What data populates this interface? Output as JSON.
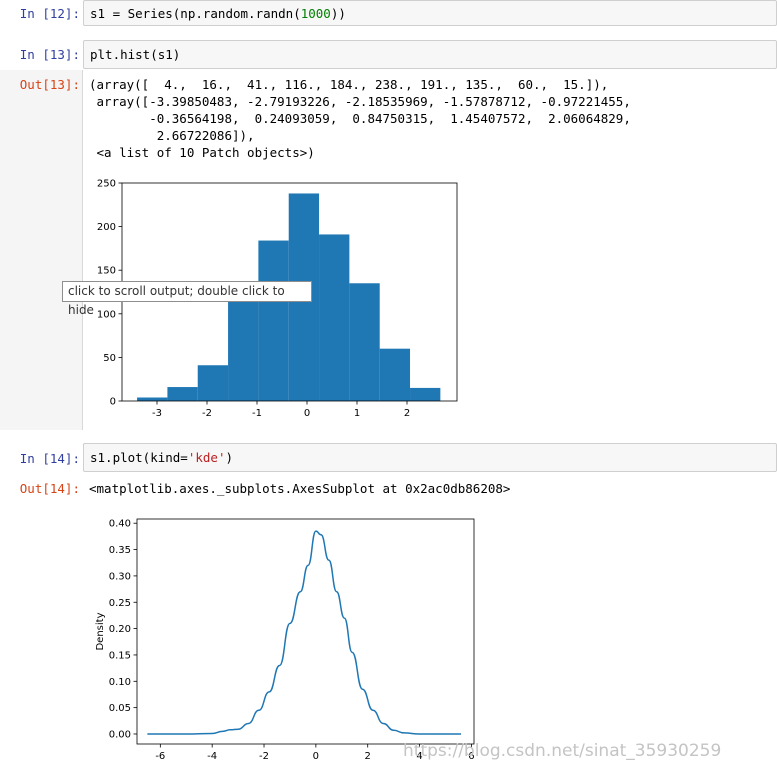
{
  "cells": {
    "c12": {
      "prompt": "In  [12]:",
      "code_a": "s1 = Series(np.random.randn(",
      "code_num": "1000",
      "code_b": "))"
    },
    "c13": {
      "prompt": "In  [13]:",
      "code": "plt.hist(s1)",
      "out_prompt": "Out[13]:",
      "output_lines": [
        "(array([  4.,  16.,  41., 116., 184., 238., 191., 135.,  60.,  15.]),",
        " array([-3.39850483, -2.79193226, -2.18535969, -1.57878712, -0.97221455,",
        "        -0.36564198,  0.24093059,  0.84750315,  1.45407572,  2.06064829,",
        "         2.66722086]),",
        " <a list of 10 Patch objects>)"
      ]
    },
    "c14": {
      "prompt": "In  [14]:",
      "code_a": "s1.plot(kind=",
      "code_str": "'kde'",
      "code_b": ")",
      "out_prompt": "Out[14]:",
      "output": "<matplotlib.axes._subplots.AxesSubplot at 0x2ac0db86208>"
    }
  },
  "tooltip": "click to scroll output; double click to hide",
  "watermark": "https://blog.csdn.net/sinat_35930259",
  "colors": {
    "plot": "#1f77b4"
  },
  "chart_data": [
    {
      "type": "bar",
      "subtype": "histogram",
      "bin_edges": [
        -3.39850483,
        -2.79193226,
        -2.18535969,
        -1.57878712,
        -0.97221455,
        -0.36564198,
        0.24093059,
        0.84750315,
        1.45407572,
        2.06064829,
        2.66722086
      ],
      "values": [
        4,
        16,
        41,
        116,
        184,
        238,
        191,
        135,
        60,
        15
      ],
      "xlim": [
        -3.7,
        3.0
      ],
      "ylim": [
        0,
        250
      ],
      "xticks": [
        "-3",
        "-2",
        "-1",
        "0",
        "1",
        "2"
      ],
      "yticks": [
        "0",
        "50",
        "100",
        "150",
        "200",
        "250"
      ],
      "grid": false
    },
    {
      "type": "line",
      "x": [
        -6.5,
        -5,
        -4,
        -3.6,
        -3.3,
        -3,
        -2.6,
        -2.2,
        -1.8,
        -1.4,
        -1,
        -0.6,
        -0.3,
        0,
        0.2,
        0.5,
        0.8,
        1.1,
        1.4,
        1.8,
        2.2,
        2.6,
        3,
        3.4,
        4,
        5,
        5.6
      ],
      "y": [
        0.0,
        0.0,
        0.001,
        0.005,
        0.008,
        0.009,
        0.02,
        0.045,
        0.08,
        0.13,
        0.21,
        0.27,
        0.32,
        0.385,
        0.378,
        0.33,
        0.27,
        0.22,
        0.155,
        0.085,
        0.045,
        0.02,
        0.007,
        0.002,
        0.0,
        0.0,
        0.0
      ],
      "xlim": [
        -6.9,
        6.1
      ],
      "ylim": [
        -0.019,
        0.408
      ],
      "xticks": [
        "-6",
        "-4",
        "-2",
        "0",
        "2",
        "4",
        "6"
      ],
      "yticks": [
        "0.00",
        "0.05",
        "0.10",
        "0.15",
        "0.20",
        "0.25",
        "0.30",
        "0.35",
        "0.40"
      ],
      "ylabel": "Density",
      "grid": false
    }
  ]
}
